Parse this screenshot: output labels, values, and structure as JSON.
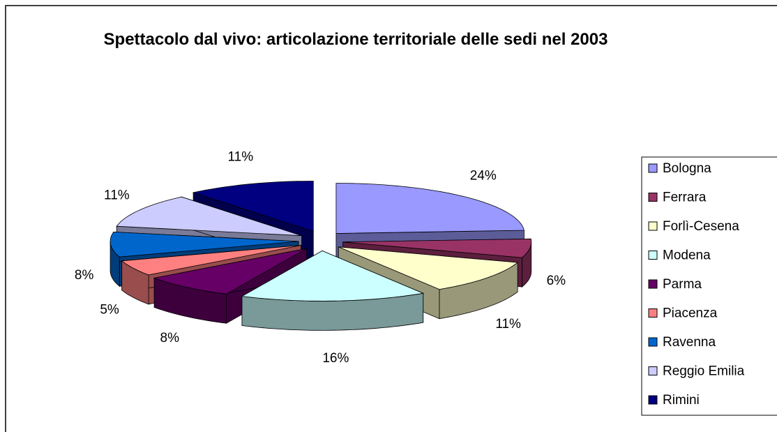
{
  "chart_data": {
    "type": "pie",
    "title": "Spettacolo dal vivo: articolazione territoriale delle sedi nel 2003",
    "categories": [
      "Bologna",
      "Ferrara",
      "Forlì-Cesena",
      "Modena",
      "Parma",
      "Piacenza",
      "Ravenna",
      "Reggio Emilia",
      "Rimini"
    ],
    "values": [
      24,
      6,
      11,
      16,
      8,
      5,
      8,
      11,
      11
    ],
    "value_labels": [
      "24%",
      "6%",
      "11%",
      "16%",
      "8%",
      "5%",
      "8%",
      "11%",
      "11%"
    ],
    "colors": [
      "#9999ff",
      "#993366",
      "#ffffcc",
      "#ccffff",
      "#660066",
      "#ff8080",
      "#0066cc",
      "#ccccff",
      "#000080"
    ],
    "legend": "right"
  }
}
